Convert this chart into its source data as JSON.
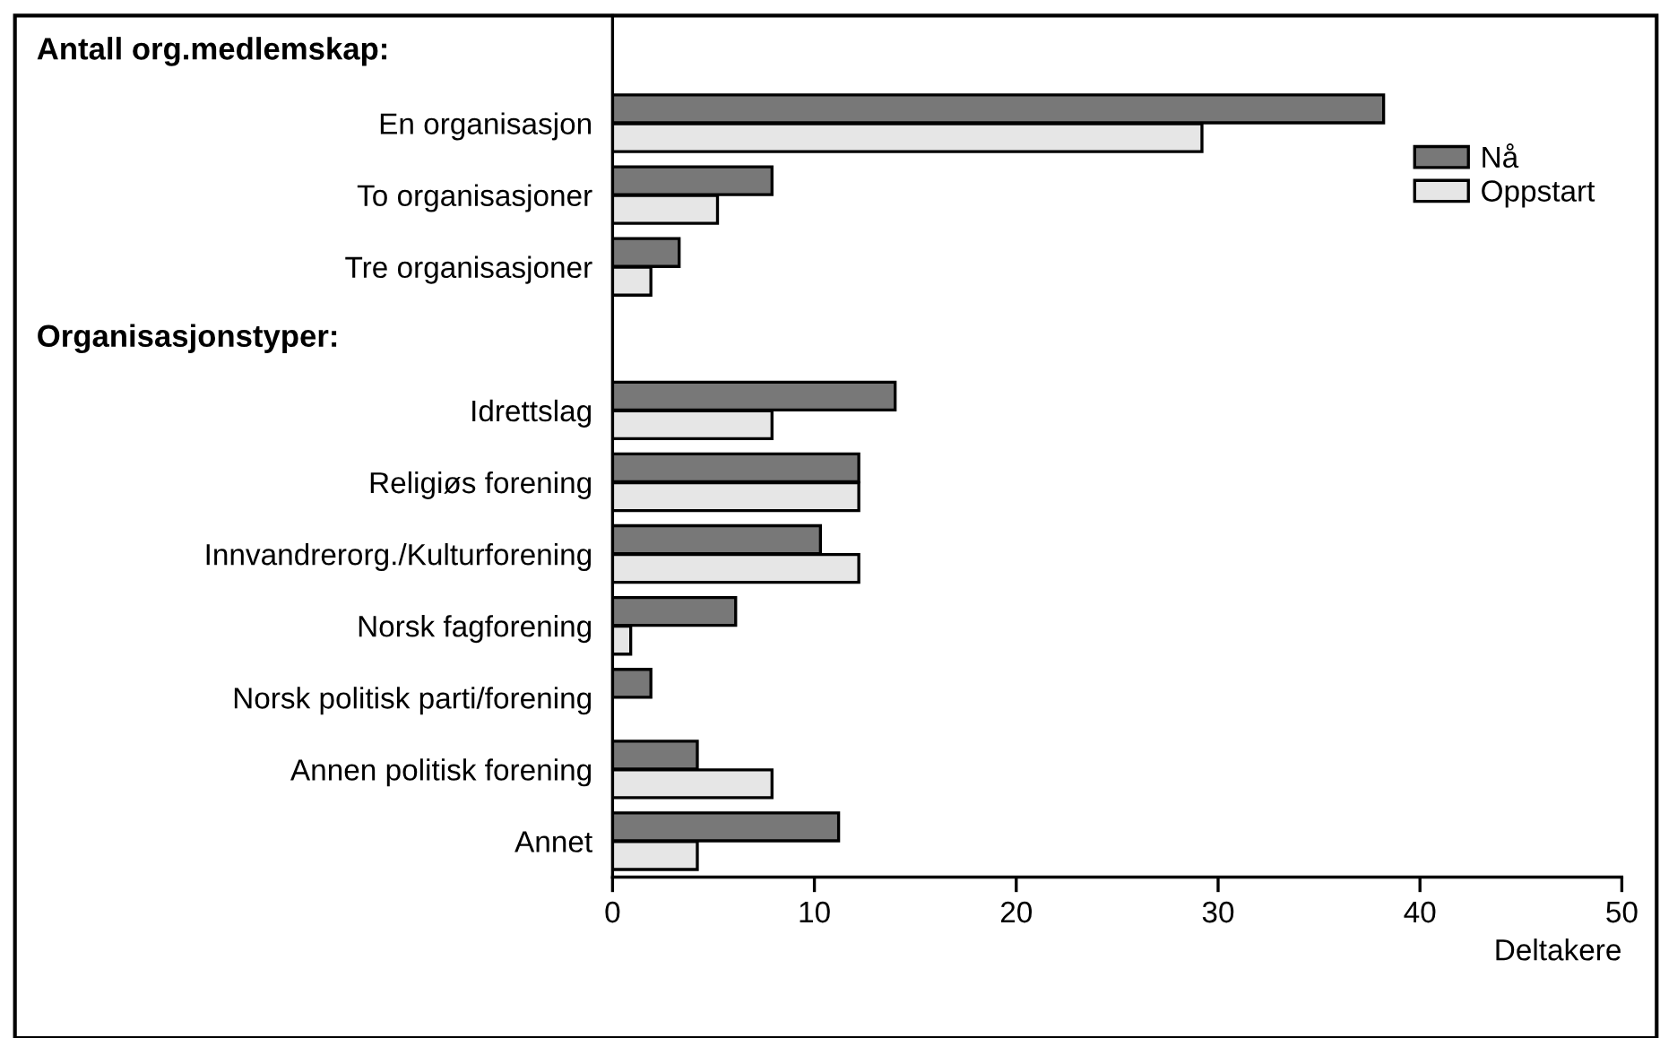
{
  "chart_data": {
    "type": "bar",
    "orientation": "horizontal",
    "xlabel": "Deltakere",
    "annotations": [
      "Antall org.medlemskap:",
      "Organisasjonstyper:"
    ],
    "categories": [
      null,
      "En organisasjon",
      "To organisasjoner",
      "Tre organisasjoner",
      null,
      "Idrettslag",
      "Religiøs forening",
      "Innvandrerorg./Kulturforening",
      "Norsk fagforening",
      "Norsk politisk parti/forening",
      "Annen politisk forening",
      "Annet"
    ],
    "series": [
      {
        "name": "Nå",
        "color": "#787878",
        "values": [
          null,
          38.2,
          7.9,
          3.3,
          null,
          14.0,
          12.2,
          10.3,
          6.1,
          1.9,
          4.2,
          11.2
        ]
      },
      {
        "name": "Oppstart",
        "color": "#e6e6e6",
        "values": [
          null,
          29.2,
          5.2,
          1.9,
          null,
          7.9,
          12.2,
          12.2,
          0.9,
          null,
          7.9,
          4.2
        ]
      }
    ],
    "xlim": [
      0,
      50
    ],
    "xticks": [
      0,
      10,
      20,
      30,
      40,
      50
    ],
    "grid": false,
    "legend": "top right"
  }
}
